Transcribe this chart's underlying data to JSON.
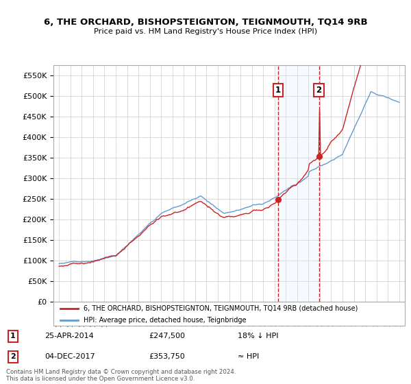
{
  "title": "6, THE ORCHARD, BISHOPSTEIGNTON, TEIGNMOUTH, TQ14 9RB",
  "subtitle": "Price paid vs. HM Land Registry's House Price Index (HPI)",
  "ylim": [
    0,
    575000
  ],
  "yticks": [
    0,
    50000,
    100000,
    150000,
    200000,
    250000,
    300000,
    350000,
    400000,
    450000,
    500000,
    550000
  ],
  "ytick_labels": [
    "£0",
    "£50K",
    "£100K",
    "£150K",
    "£200K",
    "£250K",
    "£300K",
    "£350K",
    "£400K",
    "£450K",
    "£500K",
    "£550K"
  ],
  "hpi_color": "#6699cc",
  "price_color": "#cc2222",
  "sale1_date": 2014.32,
  "sale1_price": 247500,
  "sale2_date": 2017.92,
  "sale2_price": 353750,
  "legend_line1": "6, THE ORCHARD, BISHOPSTEIGNTON, TEIGNMOUTH, TQ14 9RB (detached house)",
  "legend_line2": "HPI: Average price, detached house, Teignbridge",
  "table_row1": [
    "1",
    "25-APR-2014",
    "£247,500",
    "18% ↓ HPI"
  ],
  "table_row2": [
    "2",
    "04-DEC-2017",
    "£353,750",
    "≈ HPI"
  ],
  "footer": "Contains HM Land Registry data © Crown copyright and database right 2024.\nThis data is licensed under the Open Government Licence v3.0.",
  "bg_color": "#ffffff",
  "grid_color": "#cccccc",
  "shade_color": "#ddeeff"
}
